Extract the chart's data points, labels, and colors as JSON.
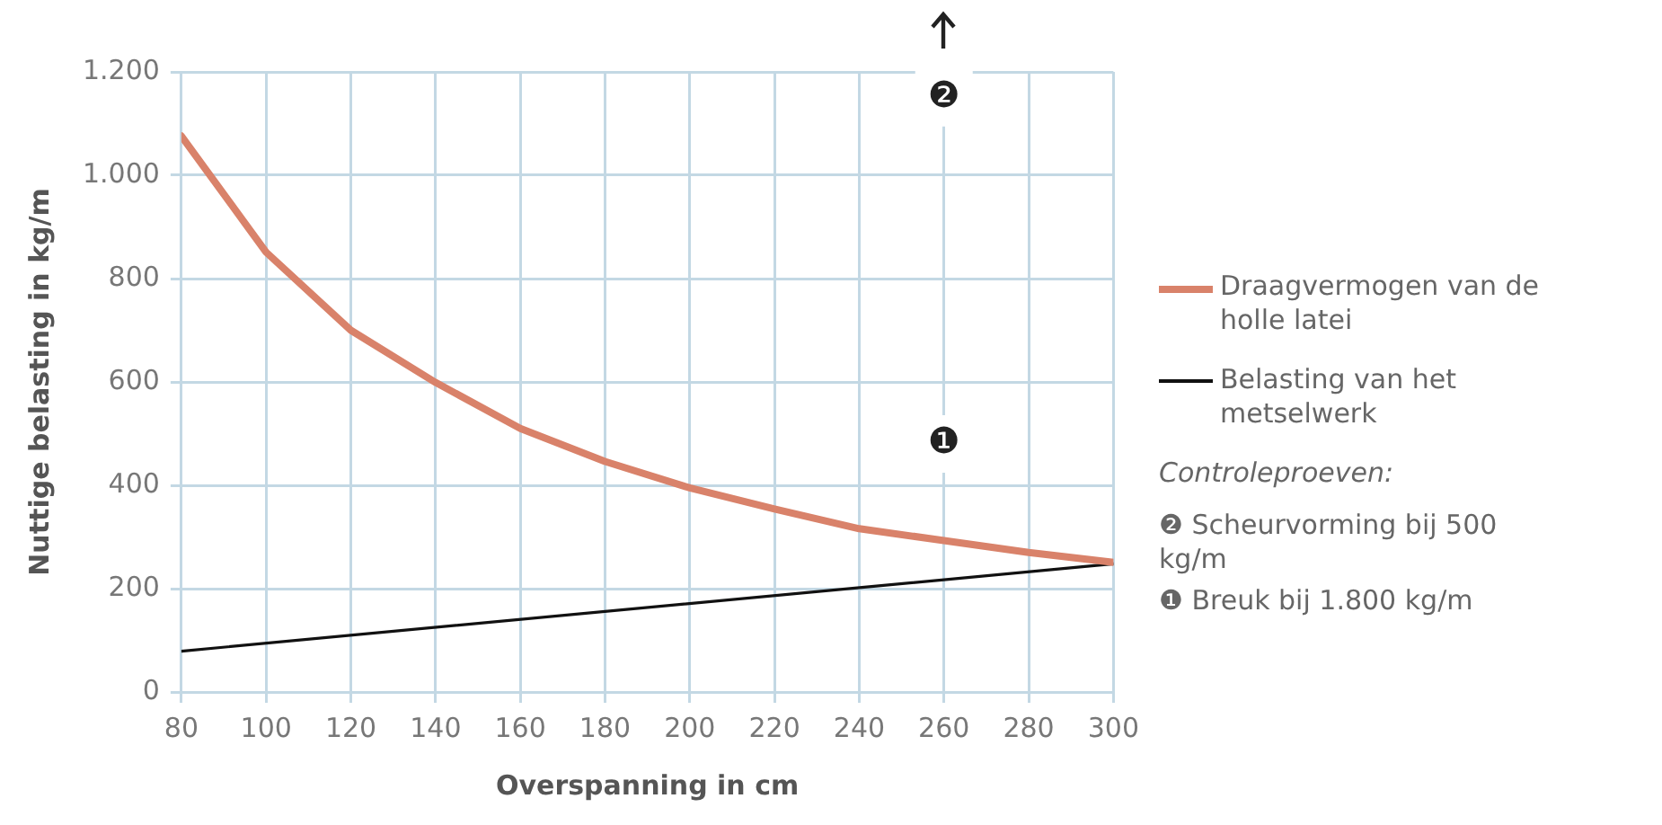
{
  "chart_data": {
    "type": "line",
    "xlabel": "Overspanning in cm",
    "ylabel": "Nuttige belasting in kg/m",
    "xlim": [
      80,
      300
    ],
    "xticks": [
      80,
      100,
      120,
      140,
      160,
      180,
      200,
      220,
      240,
      260,
      280,
      300
    ],
    "ylim": [
      0,
      1200
    ],
    "yticks": [
      0,
      200,
      400,
      600,
      800,
      {
        "value": 1000,
        "label": "1.000"
      },
      {
        "value": 1200,
        "label": "1.200"
      }
    ],
    "grid": true,
    "legend": "right",
    "series": [
      {
        "name": "Draagvermogen van de holle latei",
        "color": "#d9826a",
        "x": [
          80,
          100,
          120,
          140,
          160,
          180,
          200,
          220,
          240,
          260,
          280,
          300
        ],
        "values": [
          1076,
          851,
          700,
          599,
          510,
          446,
          395,
          354,
          316,
          293,
          270,
          251
        ]
      },
      {
        "name": "Belasting van het metselwerk",
        "color": "#111111",
        "x": [
          80,
          300
        ],
        "values": [
          79,
          248
        ]
      }
    ],
    "annotations": [
      {
        "text": "❷",
        "x": 260,
        "y": 1150
      },
      {
        "text": "❶",
        "x": 260,
        "y": 480
      },
      "Controleproeven:",
      "❷ Scheurvorming bij 500 kg/m",
      "❶ Breuk bij 1.800 kg/m"
    ]
  }
}
